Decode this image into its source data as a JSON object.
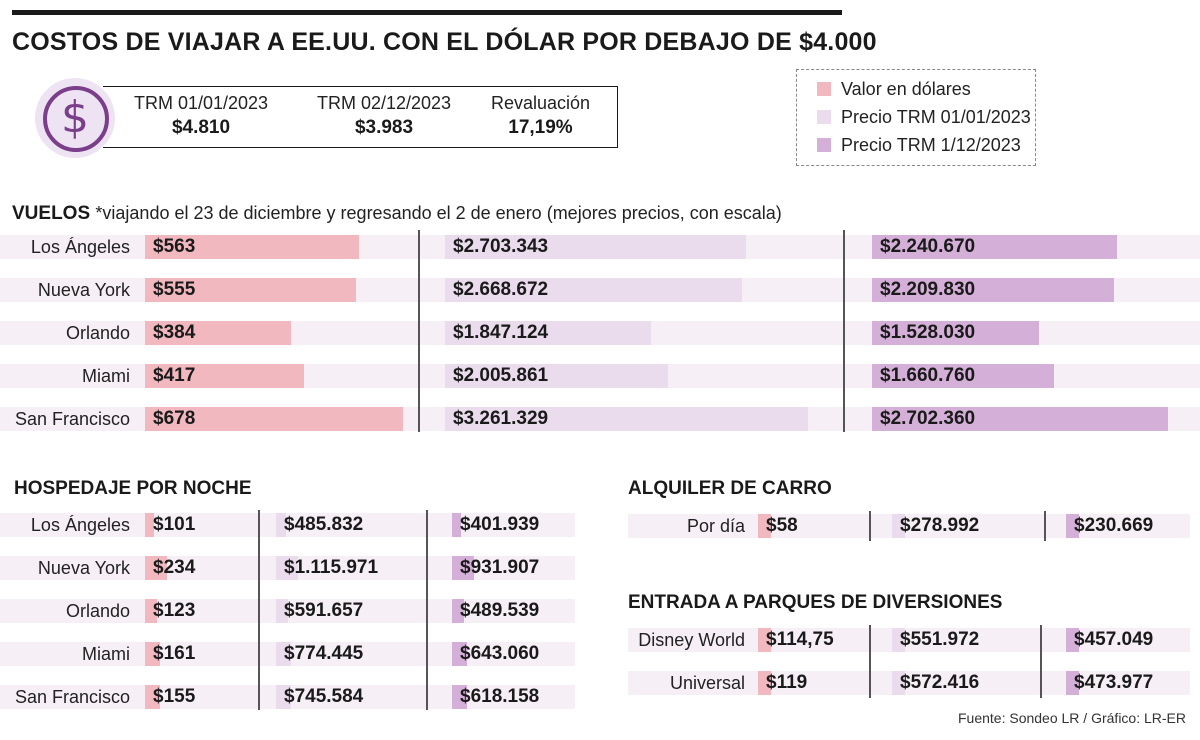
{
  "title": "COSTOS DE VIAJAR A EE.UU. CON EL DÓLAR POR DEBAJO DE $4.000",
  "trm": [
    {
      "label": "TRM 01/01/2023",
      "value": "$4.810"
    },
    {
      "label": "TRM 02/12/2023",
      "value": "$3.983"
    },
    {
      "label": "Revaluación",
      "value": "17,19%"
    }
  ],
  "legend": [
    {
      "label": "Valor en dólares",
      "color": "#f2b8bf"
    },
    {
      "label": "Precio TRM 01/01/2023",
      "color": "#eadced"
    },
    {
      "label": "Precio TRM 1/12/2023",
      "color": "#d4afd8"
    }
  ],
  "colors": {
    "usd": "#f2b8bf",
    "trm_old": "#eadced",
    "trm_new": "#d4afd8",
    "band": "#f6eff6",
    "coin": "#7b3e8a"
  },
  "source": "Fuente: Sondeo LR / Gráfico: LR-ER",
  "chart_data": [
    {
      "type": "bar",
      "title": "VUELOS",
      "subtitle": "*viajando el 23 de diciembre y regresando el 2 de enero (mejores precios, con escala)",
      "categories": [
        "Los Ángeles",
        "Nueva York",
        "Orlando",
        "Miami",
        "San Francisco"
      ],
      "series": [
        {
          "name": "Valor en dólares",
          "values": [
            563,
            555,
            384,
            417,
            678
          ],
          "labels": [
            "$563",
            "$555",
            "$384",
            "$417",
            "$678"
          ]
        },
        {
          "name": "Precio TRM 01/01/2023",
          "values": [
            2703343,
            2668672,
            1847124,
            2005861,
            3261329
          ],
          "labels": [
            "$2.703.343",
            "$2.668.672",
            "$1.847.124",
            "$2.005.861",
            "$3.261.329"
          ]
        },
        {
          "name": "Precio TRM 1/12/2023",
          "values": [
            2240670,
            2209830,
            1528030,
            1660760,
            2702360
          ],
          "labels": [
            "$2.240.670",
            "$2.209.830",
            "$1.528.030",
            "$1.660.760",
            "$2.702.360"
          ]
        }
      ]
    },
    {
      "type": "bar",
      "title": "HOSPEDAJE POR NOCHE",
      "categories": [
        "Los Ángeles",
        "Nueva York",
        "Orlando",
        "Miami",
        "San Francisco"
      ],
      "series": [
        {
          "name": "Valor en dólares",
          "values": [
            101,
            234,
            123,
            161,
            155
          ],
          "labels": [
            "$101",
            "$234",
            "$123",
            "$161",
            "$155"
          ]
        },
        {
          "name": "Precio TRM 01/01/2023",
          "values": [
            485832,
            1115971,
            591657,
            774445,
            745584
          ],
          "labels": [
            "$485.832",
            "$1.115.971",
            "$591.657",
            "$774.445",
            "$745.584"
          ]
        },
        {
          "name": "Precio TRM 1/12/2023",
          "values": [
            401939,
            931907,
            489539,
            643060,
            618158
          ],
          "labels": [
            "$401.939",
            "$931.907",
            "$489.539",
            "$643.060",
            "$618.158"
          ]
        }
      ]
    },
    {
      "type": "bar",
      "title": "ALQUILER DE CARRO",
      "categories": [
        "Por día"
      ],
      "series": [
        {
          "name": "Valor en dólares",
          "values": [
            58
          ],
          "labels": [
            "$58"
          ]
        },
        {
          "name": "Precio TRM 01/01/2023",
          "values": [
            278992
          ],
          "labels": [
            "$278.992"
          ]
        },
        {
          "name": "Precio TRM 1/12/2023",
          "values": [
            230669
          ],
          "labels": [
            "$230.669"
          ]
        }
      ]
    },
    {
      "type": "bar",
      "title": "ENTRADA A PARQUES DE DIVERSIONES",
      "categories": [
        "Disney World",
        "Universal"
      ],
      "series": [
        {
          "name": "Valor en dólares",
          "values": [
            114.75,
            119
          ],
          "labels": [
            "$114,75",
            "$119"
          ]
        },
        {
          "name": "Precio TRM 01/01/2023",
          "values": [
            551972,
            572416
          ],
          "labels": [
            "$551.972",
            "$572.416"
          ]
        },
        {
          "name": "Precio TRM 1/12/2023",
          "values": [
            457049,
            473977
          ],
          "labels": [
            "$457.049",
            "$473.977"
          ]
        }
      ]
    }
  ]
}
